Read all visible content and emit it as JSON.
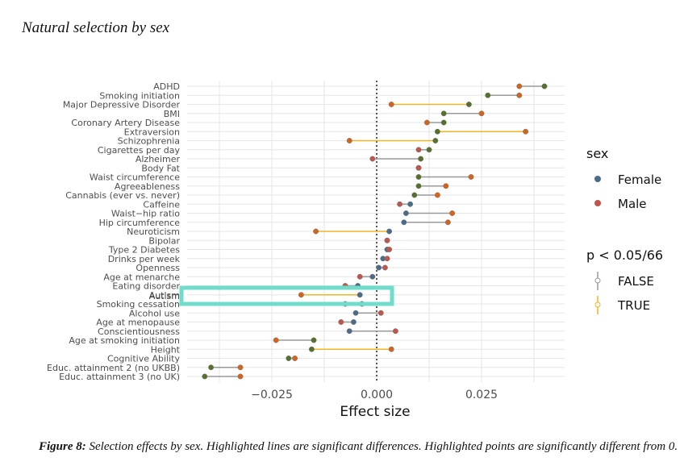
{
  "chart_data": {
    "type": "dumbbell",
    "title": "Natural selection by sex",
    "xlabel": "Effect size",
    "ylabel": "",
    "xlim": [
      -0.045,
      0.045
    ],
    "xticks": [
      -0.025,
      0.0,
      0.025
    ],
    "xtick_labels": [
      "−0.025",
      "0.000",
      "0.025"
    ],
    "grid": true,
    "reference_line": 0.0,
    "highlight_box_label": "Autism",
    "colors": {
      "female": "#4a6b8a",
      "male": "#c0554b",
      "green": "#55702a",
      "orange": "#d4641a",
      "line_false": "#9a9a9a",
      "line_true": "#f0b429",
      "highlight": "#70dccb",
      "grid": "#e6e6e6"
    },
    "legend": {
      "sex_title": "sex",
      "sex_entries": [
        "Female",
        "Male"
      ],
      "p_title": "p < 0.05/66",
      "p_entries": [
        "FALSE",
        "TRUE"
      ],
      "position": "right"
    },
    "traits": [
      {
        "name": "ADHD",
        "female": 0.04,
        "male": 0.034,
        "female_sig": true,
        "male_sig": true,
        "diff_sig": false
      },
      {
        "name": "Smoking initiation",
        "female": 0.0265,
        "male": 0.034,
        "female_sig": true,
        "male_sig": true,
        "diff_sig": false
      },
      {
        "name": "Major Depressive Disorder",
        "female": 0.022,
        "male": 0.0035,
        "female_sig": true,
        "male_sig": true,
        "diff_sig": true
      },
      {
        "name": "BMI",
        "female": 0.016,
        "male": 0.025,
        "female_sig": true,
        "male_sig": true,
        "diff_sig": false
      },
      {
        "name": "Coronary Artery Disease",
        "female": 0.016,
        "male": 0.012,
        "female_sig": true,
        "male_sig": true,
        "diff_sig": false
      },
      {
        "name": "Extraversion",
        "female": 0.0145,
        "male": 0.0355,
        "female_sig": true,
        "male_sig": true,
        "diff_sig": true
      },
      {
        "name": "Schizophrenia",
        "female": 0.014,
        "male": -0.0065,
        "female_sig": true,
        "male_sig": true,
        "diff_sig": true
      },
      {
        "name": "Cigarettes per day",
        "female": 0.0125,
        "male": 0.01,
        "female_sig": true,
        "male_sig": false,
        "diff_sig": false
      },
      {
        "name": "Alzheimer",
        "female": 0.0105,
        "male": -0.001,
        "female_sig": true,
        "male_sig": false,
        "diff_sig": false
      },
      {
        "name": "Body Fat",
        "female": 0.01,
        "male": 0.01,
        "female_sig": false,
        "male_sig": false,
        "diff_sig": false
      },
      {
        "name": "Waist circumference",
        "female": 0.01,
        "male": 0.0225,
        "female_sig": true,
        "male_sig": true,
        "diff_sig": false
      },
      {
        "name": "Agreeableness",
        "female": 0.01,
        "male": 0.0165,
        "female_sig": true,
        "male_sig": true,
        "diff_sig": false
      },
      {
        "name": "Cannabis (ever vs. never)",
        "female": 0.009,
        "male": 0.0145,
        "female_sig": true,
        "male_sig": true,
        "diff_sig": false
      },
      {
        "name": "Caffeine",
        "female": 0.008,
        "male": 0.0055,
        "female_sig": false,
        "male_sig": false,
        "diff_sig": false
      },
      {
        "name": "Waist−hip ratio",
        "female": 0.007,
        "male": 0.018,
        "female_sig": false,
        "male_sig": true,
        "diff_sig": false
      },
      {
        "name": "Hip circumference",
        "female": 0.0065,
        "male": 0.017,
        "female_sig": false,
        "male_sig": true,
        "diff_sig": false
      },
      {
        "name": "Neuroticism",
        "female": 0.003,
        "male": -0.0145,
        "female_sig": false,
        "male_sig": true,
        "diff_sig": true
      },
      {
        "name": "Bipolar",
        "female": 0.0025,
        "male": 0.0025,
        "female_sig": false,
        "male_sig": false,
        "diff_sig": false
      },
      {
        "name": "Type 2 Diabetes",
        "female": 0.0025,
        "male": 0.003,
        "female_sig": false,
        "male_sig": false,
        "diff_sig": false
      },
      {
        "name": "Drinks per week",
        "female": 0.0015,
        "male": 0.0025,
        "female_sig": false,
        "male_sig": false,
        "diff_sig": false
      },
      {
        "name": "Openness",
        "female": 0.0005,
        "male": 0.002,
        "female_sig": false,
        "male_sig": false,
        "diff_sig": false
      },
      {
        "name": "Age at menarche",
        "female": -0.001,
        "male": -0.004,
        "female_sig": false,
        "male_sig": false,
        "diff_sig": false
      },
      {
        "name": "Eating disorder",
        "female": -0.0045,
        "male": -0.0075,
        "female_sig": false,
        "male_sig": false,
        "diff_sig": false
      },
      {
        "name": "Autism",
        "female": -0.004,
        "male": -0.018,
        "female_sig": false,
        "male_sig": true,
        "diff_sig": true
      },
      {
        "name": "Smoking cessation",
        "female": -0.0035,
        "male": -0.0075,
        "female_sig": false,
        "male_sig": false,
        "diff_sig": false
      },
      {
        "name": "Alcohol use",
        "female": -0.005,
        "male": 0.001,
        "female_sig": false,
        "male_sig": false,
        "diff_sig": false
      },
      {
        "name": "Age at menopause",
        "female": -0.0055,
        "male": -0.0085,
        "female_sig": false,
        "male_sig": false,
        "diff_sig": false
      },
      {
        "name": "Conscientiousness",
        "female": -0.0065,
        "male": 0.0045,
        "female_sig": false,
        "male_sig": false,
        "diff_sig": false
      },
      {
        "name": "Age at smoking initiation",
        "female": -0.015,
        "male": -0.024,
        "female_sig": true,
        "male_sig": true,
        "diff_sig": false
      },
      {
        "name": "Height",
        "female": -0.0155,
        "male": 0.0035,
        "female_sig": true,
        "male_sig": true,
        "diff_sig": true
      },
      {
        "name": "Cognitive Ability",
        "female": -0.021,
        "male": -0.0195,
        "female_sig": true,
        "male_sig": true,
        "diff_sig": false
      },
      {
        "name": "Educ. attainment 2 (no UKBB)",
        "female": -0.0395,
        "male": -0.0325,
        "female_sig": true,
        "male_sig": true,
        "diff_sig": false
      },
      {
        "name": "Educ. attainment 3 (no UK)",
        "female": -0.041,
        "male": -0.0325,
        "female_sig": true,
        "male_sig": true,
        "diff_sig": false
      }
    ]
  },
  "caption": {
    "label": "Figure 8:",
    "text": " Selection effects by sex. Highlighted lines are significant differences. Highlighted points are significantly different from 0."
  }
}
